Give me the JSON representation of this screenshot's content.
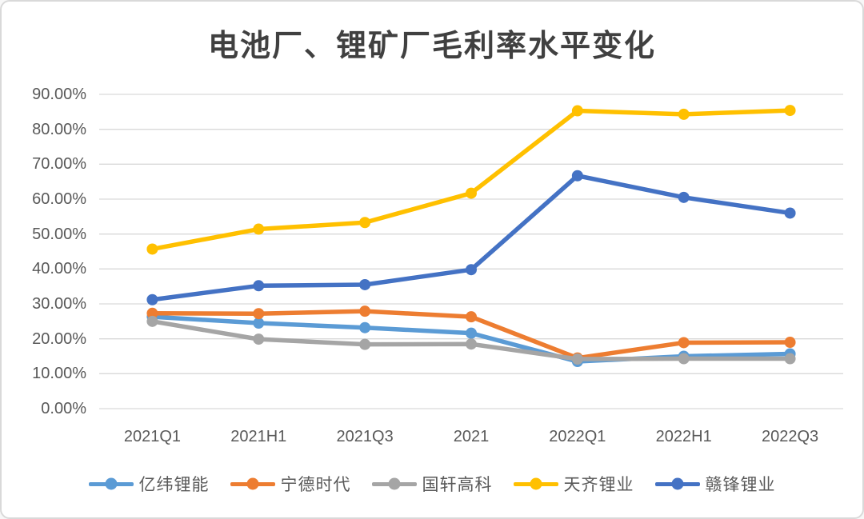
{
  "chart_data": {
    "type": "line",
    "title": "电池厂、锂矿厂毛利率水平变化",
    "categories": [
      "2021Q1",
      "2021H1",
      "2021Q3",
      "2021",
      "2022Q1",
      "2022H1",
      "2022Q3"
    ],
    "series": [
      {
        "key": "yiwei-lineng",
        "name": "亿纬锂能",
        "color": "#5B9BD5",
        "values": [
          26.3,
          24.5,
          23.2,
          21.6,
          13.5,
          15.0,
          15.7
        ]
      },
      {
        "key": "ningde-shidai",
        "name": "宁德时代",
        "color": "#ED7D31",
        "values": [
          27.3,
          27.2,
          27.9,
          26.3,
          14.5,
          18.9,
          19.0
        ]
      },
      {
        "key": "guoxuan-gaoke",
        "name": "国轩高科",
        "color": "#A5A5A5",
        "values": [
          25.0,
          19.9,
          18.4,
          18.5,
          14.2,
          14.3,
          14.3
        ]
      },
      {
        "key": "tianqi-liye",
        "name": "天齐锂业",
        "color": "#FFC000",
        "values": [
          45.7,
          51.4,
          53.3,
          61.7,
          85.3,
          84.3,
          85.4
        ]
      },
      {
        "key": "ganfeng-liye",
        "name": "赣锋锂业",
        "color": "#4472C4",
        "values": [
          31.2,
          35.2,
          35.5,
          39.8,
          66.7,
          60.5,
          56.0
        ]
      }
    ],
    "xlabel": "",
    "ylabel": "",
    "ylim": [
      0,
      90
    ],
    "y_ticks": [
      "90.00%",
      "80.00%",
      "70.00%",
      "60.00%",
      "50.00%",
      "40.00%",
      "30.00%",
      "20.00%",
      "10.00%",
      "0.00%"
    ],
    "grid": "horizontal",
    "gridline_color": "#D9D9D9",
    "legend_position": "bottom"
  }
}
